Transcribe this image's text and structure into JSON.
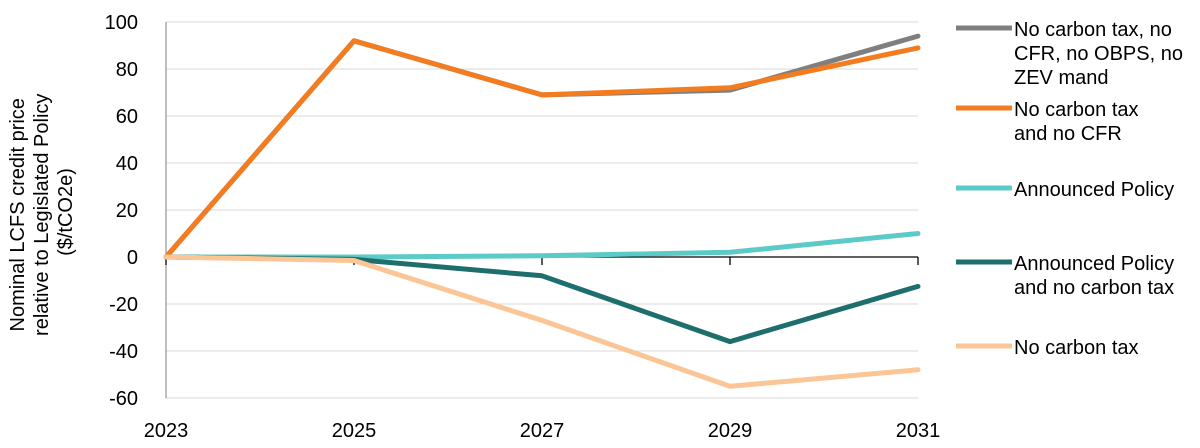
{
  "chart_data": {
    "type": "line",
    "x": [
      2023,
      2025,
      2027,
      2029,
      2031
    ],
    "x_tick_labels": [
      "2023",
      "2025",
      "2027",
      "2029",
      "2031"
    ],
    "ylim": [
      -60,
      100
    ],
    "y_ticks": [
      100,
      80,
      60,
      40,
      20,
      0,
      -20,
      -40,
      -60
    ],
    "y_tick_labels": [
      "100",
      "80",
      "60",
      "40",
      "20",
      "0",
      "-20",
      "-40",
      "-60"
    ],
    "ylabel_lines": [
      "Nominal LCFS credit price",
      "relative to Legislated Policy",
      "($/tCO2e)"
    ],
    "grid": true,
    "legend_position": "right",
    "series": [
      {
        "name_lines": [
          "No carbon tax, no",
          "CFR, no OBPS, no",
          "ZEV mand"
        ],
        "color": "#7f7f7f",
        "values": [
          0,
          92,
          69,
          71,
          94
        ]
      },
      {
        "name_lines": [
          "No carbon tax",
          "and no CFR"
        ],
        "color": "#f47c20",
        "values": [
          0,
          92,
          69,
          72,
          89
        ]
      },
      {
        "name_lines": [
          "Announced Policy"
        ],
        "color": "#5ccac7",
        "values": [
          0,
          0,
          0.5,
          2,
          10
        ]
      },
      {
        "name_lines": [
          "Announced Policy",
          "and no carbon tax"
        ],
        "color": "#1f6e6e",
        "values": [
          0,
          -1,
          -8,
          -36,
          -12.5
        ]
      },
      {
        "name_lines": [
          "No carbon tax"
        ],
        "color": "#fbc596",
        "values": [
          0,
          -1.5,
          -27,
          -55,
          -48
        ]
      }
    ]
  }
}
